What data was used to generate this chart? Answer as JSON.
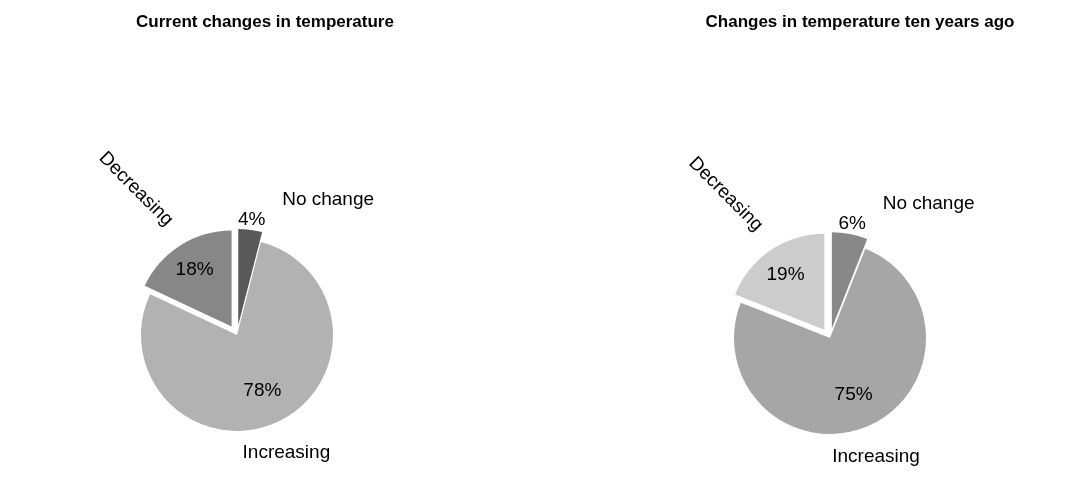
{
  "chart_data": [
    {
      "type": "pie",
      "title": "Current changes in temperature",
      "categories": [
        "No change",
        "Increasing",
        "Decreasing"
      ],
      "values": [
        4,
        78,
        18
      ],
      "value_labels": [
        "4%",
        "78%",
        "18%"
      ],
      "colors": [
        "#595959",
        "#b2b2b2",
        "#878787"
      ]
    },
    {
      "type": "pie",
      "title": "Changes in temperature ten years ago",
      "categories": [
        "No change",
        "Increasing",
        "Decreasing"
      ],
      "values": [
        6,
        75,
        19
      ],
      "value_labels": [
        "6%",
        "75%",
        "19%"
      ],
      "colors": [
        "#888888",
        "#a6a6a6",
        "#cccccc"
      ]
    }
  ]
}
